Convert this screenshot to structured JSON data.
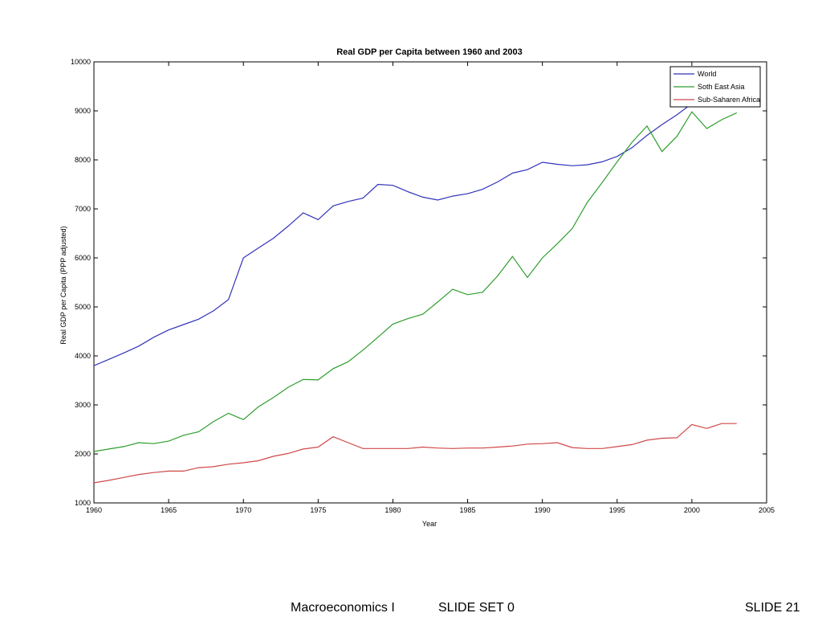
{
  "chart_data": {
    "type": "line",
    "title": "Real GDP per Capita between 1960 and 2003",
    "xlabel": "Year",
    "ylabel": "Real GDP per Capita (PPP adjusted)",
    "xlim": [
      1960,
      2005
    ],
    "ylim": [
      1000,
      10000
    ],
    "xticks": [
      1960,
      1965,
      1970,
      1975,
      1980,
      1985,
      1990,
      1995,
      2000,
      2005
    ],
    "yticks": [
      1000,
      2000,
      3000,
      4000,
      5000,
      6000,
      7000,
      8000,
      9000,
      10000
    ],
    "grid": false,
    "legend_position": "top-right",
    "x": [
      1960,
      1961,
      1962,
      1963,
      1964,
      1965,
      1966,
      1967,
      1968,
      1969,
      1970,
      1971,
      1972,
      1973,
      1974,
      1975,
      1976,
      1977,
      1978,
      1979,
      1980,
      1981,
      1982,
      1983,
      1984,
      1985,
      1986,
      1987,
      1988,
      1989,
      1990,
      1991,
      1992,
      1993,
      1994,
      1995,
      1996,
      1997,
      1998,
      1999,
      2000,
      2001,
      2002,
      2003
    ],
    "series": [
      {
        "name": "World",
        "color": "#3333bb",
        "values": [
          3800,
          3930,
          4060,
          4200,
          4380,
          4530,
          4640,
          4750,
          4920,
          5150,
          6000,
          6200,
          6400,
          6650,
          6920,
          6780,
          7060,
          7150,
          7220,
          7500,
          7480,
          7350,
          7240,
          7180,
          7260,
          7310,
          7400,
          7550,
          7730,
          7800,
          7950,
          7910,
          7880,
          7900,
          7960,
          8070,
          8250,
          8500,
          8720,
          8920,
          9150,
          null,
          null,
          null
        ]
      },
      {
        "name": "Soth East Asia",
        "color": "#2e9e2e",
        "values": [
          2050,
          2100,
          2150,
          2230,
          2210,
          2260,
          2380,
          2450,
          2660,
          2830,
          2700,
          2960,
          3150,
          3360,
          3520,
          3510,
          3740,
          3880,
          4120,
          4380,
          4650,
          4760,
          4850,
          5100,
          5360,
          5250,
          5300,
          5630,
          6030,
          5600,
          6000,
          6290,
          6600,
          7130,
          7540,
          7960,
          8360,
          8690,
          8170,
          8480,
          8980,
          8640,
          8820,
          8960
        ]
      },
      {
        "name": "Sub-Saharen Africa",
        "color": "#d04848",
        "values": [
          1410,
          1460,
          1520,
          1580,
          1620,
          1650,
          1650,
          1720,
          1740,
          1790,
          1820,
          1860,
          1950,
          2010,
          2100,
          2140,
          2350,
          2230,
          2110,
          2110,
          2110,
          2110,
          2140,
          2120,
          2110,
          2120,
          2120,
          2140,
          2160,
          2200,
          2210,
          2230,
          2130,
          2110,
          2110,
          2150,
          2190,
          2280,
          2320,
          2330,
          2600,
          2520,
          2620,
          2620
        ]
      }
    ]
  },
  "footer": {
    "course": "Macroeconomics I",
    "slide_set": "SLIDE SET 0",
    "slide_number": "SLIDE 21"
  }
}
